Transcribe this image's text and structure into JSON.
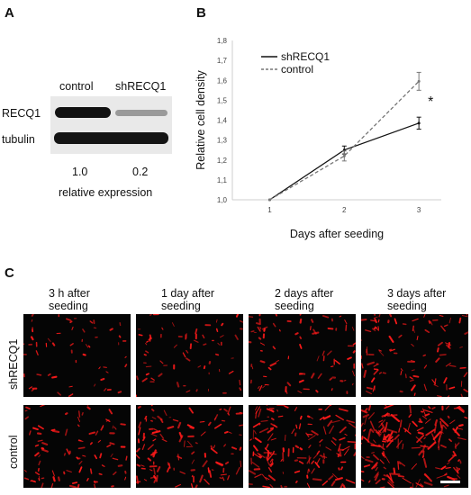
{
  "panel_a": {
    "letter": "A",
    "lanes": [
      "control",
      "shRECQ1"
    ],
    "proteins": [
      "RECQ1",
      "tubulin"
    ],
    "quantification": [
      "1.0",
      "0.2"
    ],
    "quant_label": "relative expression"
  },
  "panel_b": {
    "letter": "B"
  },
  "panel_c": {
    "letter": "C",
    "timepoints": [
      [
        "3 h after",
        "seeding"
      ],
      [
        "1 day after",
        "seeding"
      ],
      [
        "2 days after",
        "seeding"
      ],
      [
        "3 days after",
        "seeding"
      ]
    ],
    "conditions": [
      "shRECQ1",
      "control"
    ],
    "signal_color": "#ff1a1a",
    "signal_density": {
      "shRECQ1": [
        0.15,
        0.22,
        0.3,
        0.4
      ],
      "control": [
        0.35,
        0.5,
        0.7,
        0.85
      ]
    }
  },
  "chart_data": {
    "type": "line",
    "xlabel": "Days after seeding",
    "ylabel": "Relative cell density",
    "x": [
      1,
      2,
      3
    ],
    "xticks": [
      "1",
      "2",
      "3"
    ],
    "yticks": [
      "1,0",
      "1,1",
      "1,2",
      "1,3",
      "1,4",
      "1,5",
      "1,6",
      "1,7",
      "1,8"
    ],
    "ylim": [
      1.0,
      1.8
    ],
    "legend_position": "top-left",
    "annotation": "*",
    "series": [
      {
        "name": "shRECQ1",
        "values": [
          1.0,
          1.25,
          1.385
        ],
        "errors": [
          0,
          0.02,
          0.03
        ],
        "color": "#111111",
        "style": "solid"
      },
      {
        "name": "control",
        "values": [
          1.0,
          1.22,
          1.595
        ],
        "errors": [
          0,
          0.025,
          0.045
        ],
        "color": "#777777",
        "style": "dashed"
      }
    ]
  }
}
